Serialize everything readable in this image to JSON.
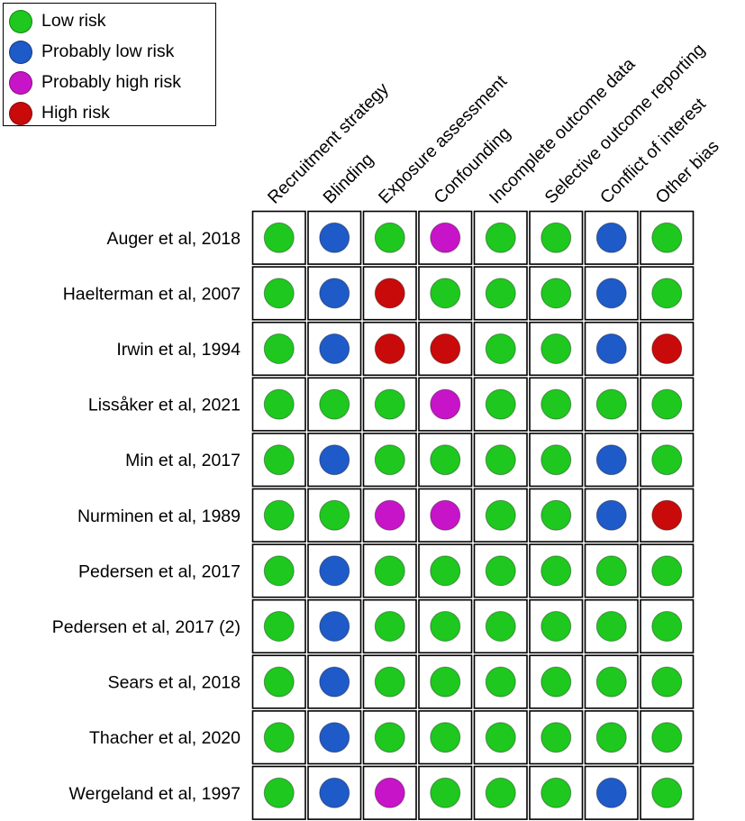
{
  "legend": {
    "items": [
      {
        "label": "Low risk",
        "color": "#1ec81e"
      },
      {
        "label": "Probably low risk",
        "color": "#1e5ac8"
      },
      {
        "label": "Probably high risk",
        "color": "#c814c8"
      },
      {
        "label": "High risk",
        "color": "#c80a0a"
      }
    ]
  },
  "chart_data": {
    "type": "table",
    "columns": [
      "Recruitment strategy",
      "Blinding",
      "Exposure assessment",
      "Confounding",
      "Incomplete outcome data",
      "Selective outcome reporting",
      "Conflict of interest",
      "Other bias"
    ],
    "rows": [
      {
        "study": "Auger et al, 2018",
        "ratings": [
          "Low risk",
          "Probably low risk",
          "Low risk",
          "Probably high risk",
          "Low risk",
          "Low risk",
          "Probably low risk",
          "Low risk"
        ]
      },
      {
        "study": "Haelterman et al, 2007",
        "ratings": [
          "Low risk",
          "Probably low risk",
          "High risk",
          "Low risk",
          "Low risk",
          "Low risk",
          "Probably low risk",
          "Low risk"
        ]
      },
      {
        "study": "Irwin et al, 1994",
        "ratings": [
          "Low risk",
          "Probably low risk",
          "High risk",
          "High risk",
          "Low risk",
          "Low risk",
          "Probably low risk",
          "High risk"
        ]
      },
      {
        "study": "Lissåker et al, 2021",
        "ratings": [
          "Low risk",
          "Low risk",
          "Low risk",
          "Probably high risk",
          "Low risk",
          "Low risk",
          "Low risk",
          "Low risk"
        ]
      },
      {
        "study": "Min et al, 2017",
        "ratings": [
          "Low risk",
          "Probably low risk",
          "Low risk",
          "Low risk",
          "Low risk",
          "Low risk",
          "Probably low risk",
          "Low risk"
        ]
      },
      {
        "study": "Nurminen et al, 1989",
        "ratings": [
          "Low risk",
          "Low risk",
          "Probably high risk",
          "Probably high risk",
          "Low risk",
          "Low risk",
          "Probably low risk",
          "High risk"
        ]
      },
      {
        "study": "Pedersen et al, 2017",
        "ratings": [
          "Low risk",
          "Probably low risk",
          "Low risk",
          "Low risk",
          "Low risk",
          "Low risk",
          "Low risk",
          "Low risk"
        ]
      },
      {
        "study": "Pedersen et al, 2017 (2)",
        "ratings": [
          "Low risk",
          "Probably low risk",
          "Low risk",
          "Low risk",
          "Low risk",
          "Low risk",
          "Low risk",
          "Low risk"
        ]
      },
      {
        "study": "Sears et al, 2018",
        "ratings": [
          "Low risk",
          "Probably low risk",
          "Low risk",
          "Low risk",
          "Low risk",
          "Low risk",
          "Low risk",
          "Low risk"
        ]
      },
      {
        "study": "Thacher et al, 2020",
        "ratings": [
          "Low risk",
          "Probably low risk",
          "Low risk",
          "Low risk",
          "Low risk",
          "Low risk",
          "Low risk",
          "Low risk"
        ]
      },
      {
        "study": "Wergeland et al, 1997",
        "ratings": [
          "Low risk",
          "Probably low risk",
          "Probably high risk",
          "Low risk",
          "Low risk",
          "Low risk",
          "Probably low risk",
          "Low risk"
        ]
      }
    ]
  }
}
